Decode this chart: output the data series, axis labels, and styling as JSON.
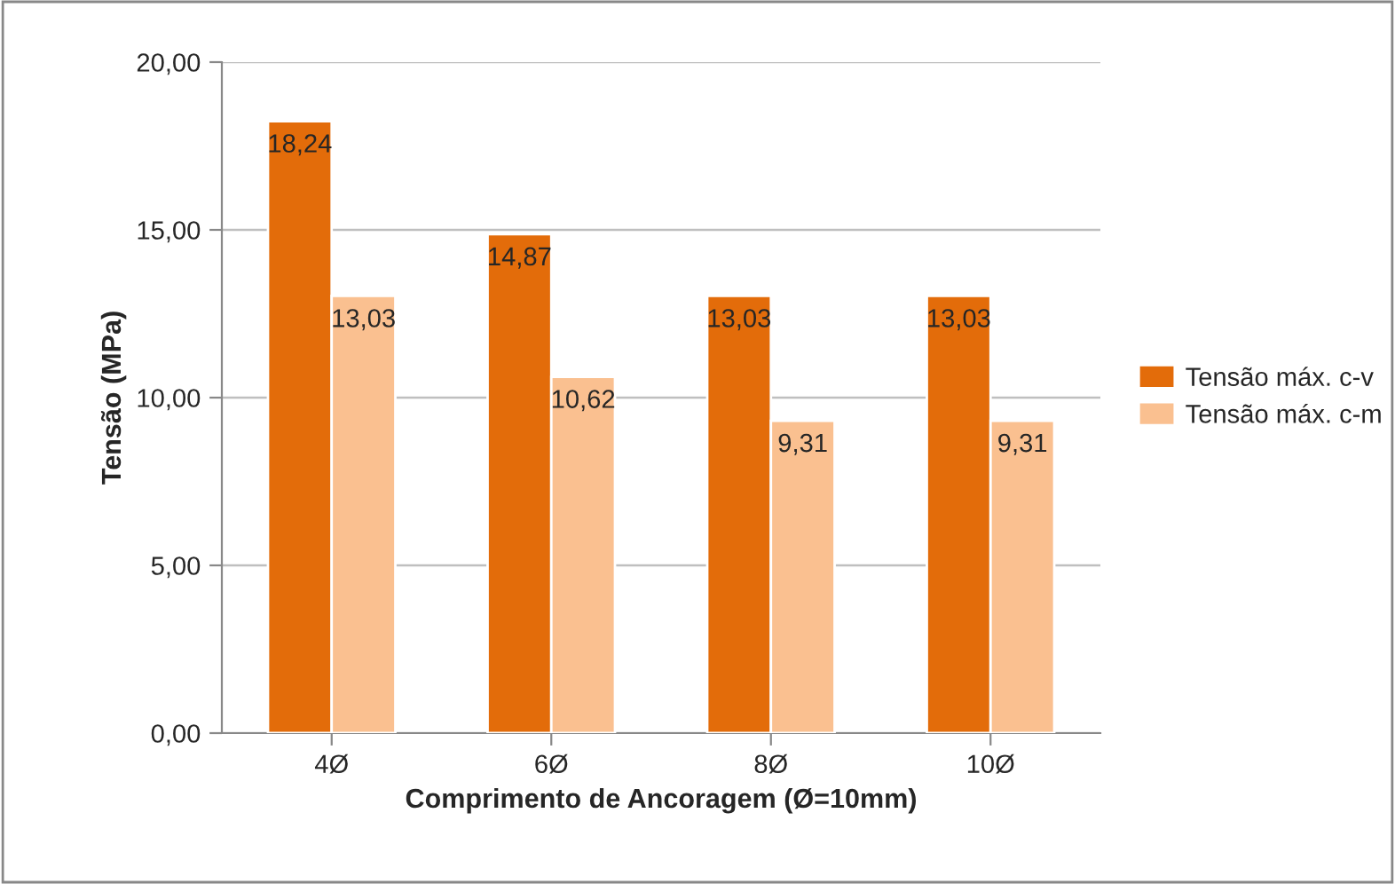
{
  "chart_data": {
    "type": "bar",
    "xlabel": "Comprimento de Ancoragem (Ø=10mm)",
    "ylabel": "Tensão (MPa)",
    "categories": [
      "4Ø",
      "6Ø",
      "8Ø",
      "10Ø"
    ],
    "series": [
      {
        "name": "Tensão máx. c-v",
        "color": "#e36c0a",
        "values": [
          18.24,
          14.87,
          13.03,
          13.03
        ],
        "value_labels": [
          "18,24",
          "14,87",
          "13,03",
          "13,03"
        ]
      },
      {
        "name": "Tensão máx. c-m",
        "color": "#fac090",
        "values": [
          13.03,
          10.62,
          9.31,
          9.31
        ],
        "value_labels": [
          "13,03",
          "10,62",
          "9,31",
          "9,31"
        ]
      }
    ],
    "ylim": [
      0,
      20
    ],
    "yticks": [
      {
        "value": 0,
        "label": "0,00"
      },
      {
        "value": 5,
        "label": "5,00"
      },
      {
        "value": 10,
        "label": "10,00"
      },
      {
        "value": 15,
        "label": "15,00"
      },
      {
        "value": 20,
        "label": "20,00"
      }
    ],
    "grid": "y",
    "legend": "right"
  }
}
